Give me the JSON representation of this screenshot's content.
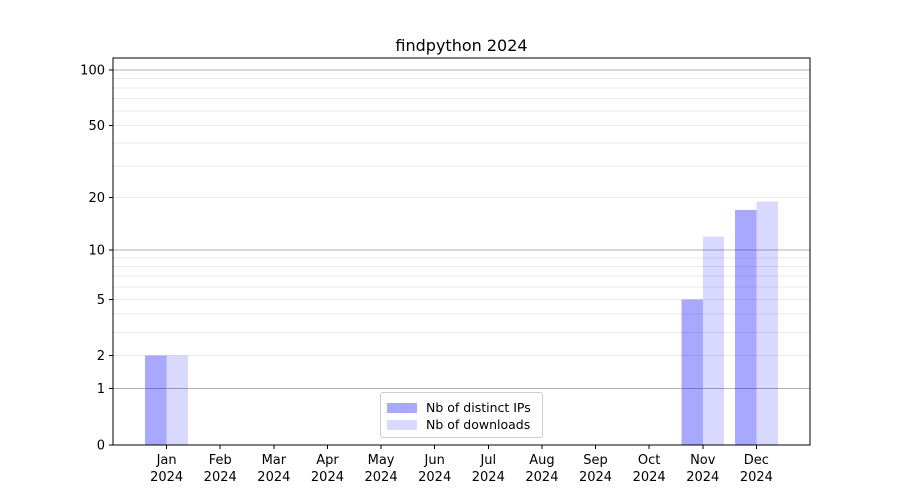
{
  "chart_data": {
    "type": "bar",
    "title": "findpython 2024",
    "categories": [
      "Jan",
      "Feb",
      "Mar",
      "Apr",
      "May",
      "Jun",
      "Jul",
      "Aug",
      "Sep",
      "Oct",
      "Nov",
      "Dec"
    ],
    "x_tick_year": "2024",
    "series": [
      {
        "name": "Nb of distinct IPs",
        "color": "rgba(0,0,255,0.34)",
        "values": [
          2,
          0,
          0,
          0,
          0,
          0,
          0,
          0,
          0,
          0,
          5,
          17
        ]
      },
      {
        "name": "Nb of downloads",
        "color": "rgba(0,0,255,0.15)",
        "values": [
          2,
          0,
          0,
          0,
          0,
          0,
          0,
          0,
          0,
          0,
          12,
          19
        ]
      }
    ],
    "yscale": "log1p",
    "ylim": [
      0,
      116
    ],
    "yticks": [
      0,
      1,
      2,
      5,
      10,
      20,
      50,
      100
    ],
    "major_gridlines": [
      1,
      10,
      100
    ],
    "minor_gridlines": [
      2,
      3,
      4,
      5,
      6,
      7,
      8,
      9,
      20,
      30,
      40,
      50,
      60,
      70,
      80,
      90
    ],
    "colors": {
      "major_grid": "#b0b0b0",
      "minor_grid": "#e8e8e8",
      "axis": "#000000",
      "text": "#000000",
      "legend_border": "#cccccc"
    },
    "legend_position": "lower center",
    "grid": true
  }
}
